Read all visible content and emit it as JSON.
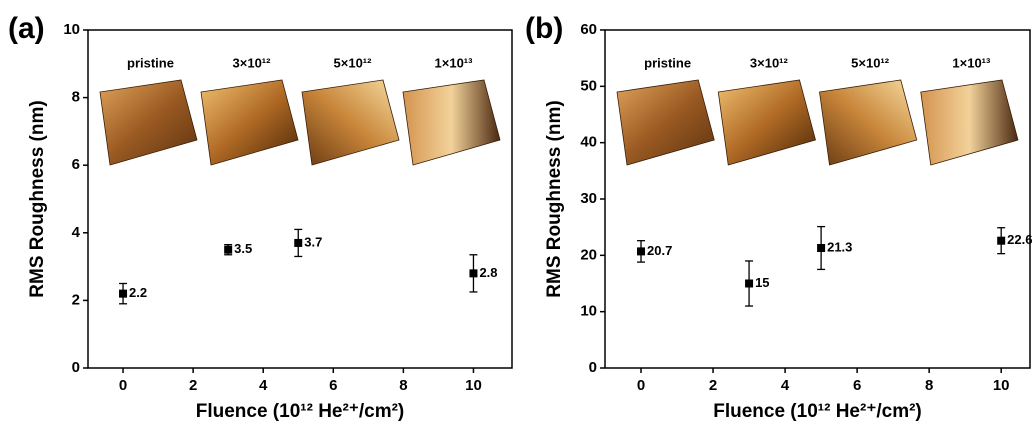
{
  "chart_data": [
    {
      "type": "scatter",
      "panel_label": "(a)",
      "x_label": "Fluence (10¹² He²⁺/cm²)",
      "y_label": "RMS Roughness (nm)",
      "insets": [
        "pristine",
        "3×10¹²",
        "5×10¹²",
        "1×10¹³"
      ],
      "x": [
        0,
        3,
        5,
        10
      ],
      "values": [
        2.2,
        3.5,
        3.7,
        2.8
      ],
      "errors": [
        0.3,
        0.15,
        0.4,
        0.55
      ],
      "color": "#000000",
      "xlim": [
        -1,
        11.1
      ],
      "xticks": [
        0,
        2,
        4,
        6,
        8,
        10
      ],
      "ylim": [
        0,
        10
      ],
      "yticks": [
        0,
        2,
        4,
        6,
        8,
        10
      ]
    },
    {
      "type": "scatter",
      "panel_label": "(b)",
      "x_label": "Fluence (10¹² He²⁺/cm²)",
      "y_label": "RMS Roughness (nm)",
      "insets": [
        "pristine",
        "3×10¹²",
        "5×10¹²",
        "1×10¹³"
      ],
      "x": [
        0,
        3,
        5,
        10
      ],
      "values": [
        20.7,
        15,
        21.3,
        22.6
      ],
      "errors": [
        1.9,
        4,
        3.8,
        2.3
      ],
      "color": "#000000",
      "xlim": [
        -1,
        10.8
      ],
      "xticks": [
        0,
        2,
        4,
        6,
        8,
        10
      ],
      "ylim": [
        0,
        60
      ],
      "yticks": [
        0,
        10,
        20,
        30,
        40,
        50,
        60
      ]
    }
  ]
}
